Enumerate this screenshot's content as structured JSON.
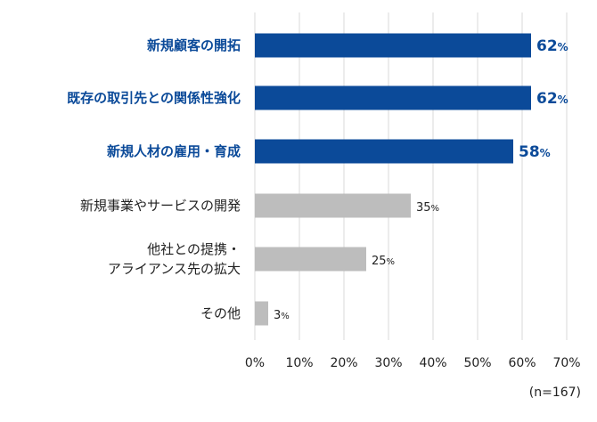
{
  "chart_data": {
    "type": "bar",
    "orientation": "horizontal",
    "categories": [
      [
        "新規顧客の開拓"
      ],
      [
        "既存の取引先との関係性強化"
      ],
      [
        "新規人材の雇用・育成"
      ],
      [
        "新規事業やサービスの開発"
      ],
      [
        "他社との提携・",
        "アライアンス先の拡大"
      ],
      [
        "その他"
      ]
    ],
    "values": [
      62,
      62,
      58,
      35,
      25,
      3
    ],
    "highlighted": [
      true,
      true,
      true,
      false,
      false,
      false
    ],
    "value_suffix": "%",
    "xlim": [
      0,
      70
    ],
    "xticks": [
      "0%",
      "10%",
      "20%",
      "30%",
      "40%",
      "50%",
      "60%",
      "70%"
    ],
    "grid": true,
    "colors": {
      "highlight": "#0b4a99",
      "normal": "#bdbdbd",
      "grid": "#d9d9d9"
    }
  },
  "note": "(n=167)"
}
